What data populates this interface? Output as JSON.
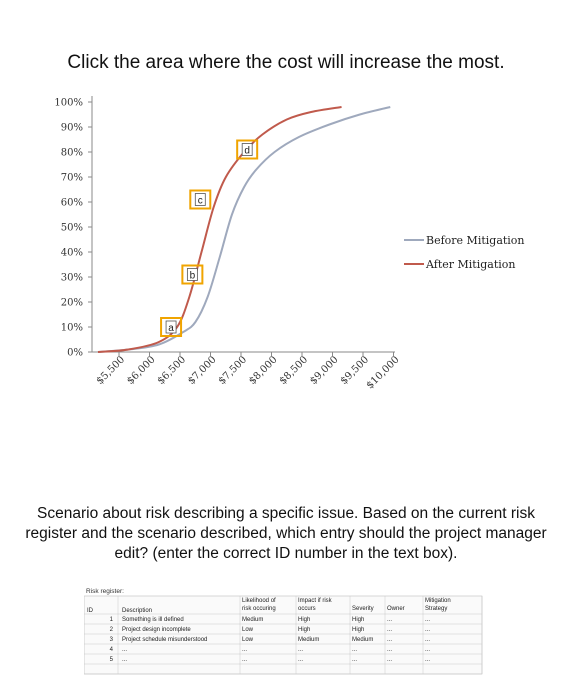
{
  "question1": "Click the area where the cost will increase the most.",
  "question2": "Scenario about risk describing a specific issue. Based on the current risk register and the scenario described, which entry should the project manager edit? (enter the correct ID number in the text box).",
  "colors": {
    "before": "#9fa9bd",
    "after": "#c05a4c",
    "box": "#f0a400"
  },
  "chart_data": {
    "type": "line",
    "y_tick_labels": [
      "100%",
      "90%",
      "80%",
      "70%",
      "60%",
      "50%",
      "40%",
      "30%",
      "20%",
      "10%",
      "0%"
    ],
    "x_tick_labels": [
      "$5,500",
      "$6,000",
      "$6,500",
      "$7,000",
      "$7,500",
      "$8,000",
      "$8,500",
      "$9,000",
      "$9,500",
      "$10,000"
    ],
    "ylim": [
      0,
      100
    ],
    "xlim": [
      5500,
      10000
    ],
    "series": [
      {
        "name": "Before Mitigation",
        "x": [
          5500,
          6000,
          6500,
          6900,
          7100,
          7300,
          7500,
          7700,
          7900,
          8100,
          8400,
          8800,
          9300,
          9800,
          10300
        ],
        "y": [
          0,
          1,
          3,
          8,
          12,
          22,
          38,
          55,
          66,
          73,
          80,
          86,
          91,
          95,
          98
        ]
      },
      {
        "name": "After Mitigation",
        "x": [
          5500,
          6000,
          6500,
          6800,
          7000,
          7200,
          7400,
          7600,
          7900,
          8200,
          8600,
          9000,
          9500
        ],
        "y": [
          0,
          1,
          4,
          10,
          22,
          40,
          58,
          70,
          80,
          87,
          93,
          96,
          98
        ]
      }
    ],
    "annotations": [
      {
        "label": "a",
        "x": 6700,
        "y": 10
      },
      {
        "label": "b",
        "x": 7050,
        "y": 31
      },
      {
        "label": "c",
        "x": 7180,
        "y": 61
      },
      {
        "label": "d",
        "x": 7950,
        "y": 81
      }
    ]
  },
  "register": {
    "title": "Risk register:",
    "headers": {
      "id": "ID",
      "description": "Description",
      "likelihood1": "Likelihood of",
      "likelihood2": "risk occuring",
      "impact1": "Impact if risk",
      "impact2": "occurs",
      "severity": "Severity",
      "owner": "Owner",
      "mitigation1": "Mitigation",
      "mitigation2": "Strategy"
    },
    "rows": [
      {
        "id": "1",
        "description": "Something is ill defined",
        "likelihood": "Medium",
        "impact": "High",
        "severity": "High",
        "owner": "...",
        "mitigation": "..."
      },
      {
        "id": "2",
        "description": "Project design incomplete",
        "likelihood": "Low",
        "impact": "High",
        "severity": "High",
        "owner": "...",
        "mitigation": "..."
      },
      {
        "id": "3",
        "description": "Project schedule misunderstood",
        "likelihood": "Low",
        "impact": "Medium",
        "severity": "Medium",
        "owner": "...",
        "mitigation": "..."
      },
      {
        "id": "4",
        "description": "...",
        "likelihood": "...",
        "impact": "...",
        "severity": "...",
        "owner": "...",
        "mitigation": "..."
      },
      {
        "id": "5",
        "description": "...",
        "likelihood": "...",
        "impact": "...",
        "severity": "...",
        "owner": "...",
        "mitigation": "..."
      }
    ]
  }
}
